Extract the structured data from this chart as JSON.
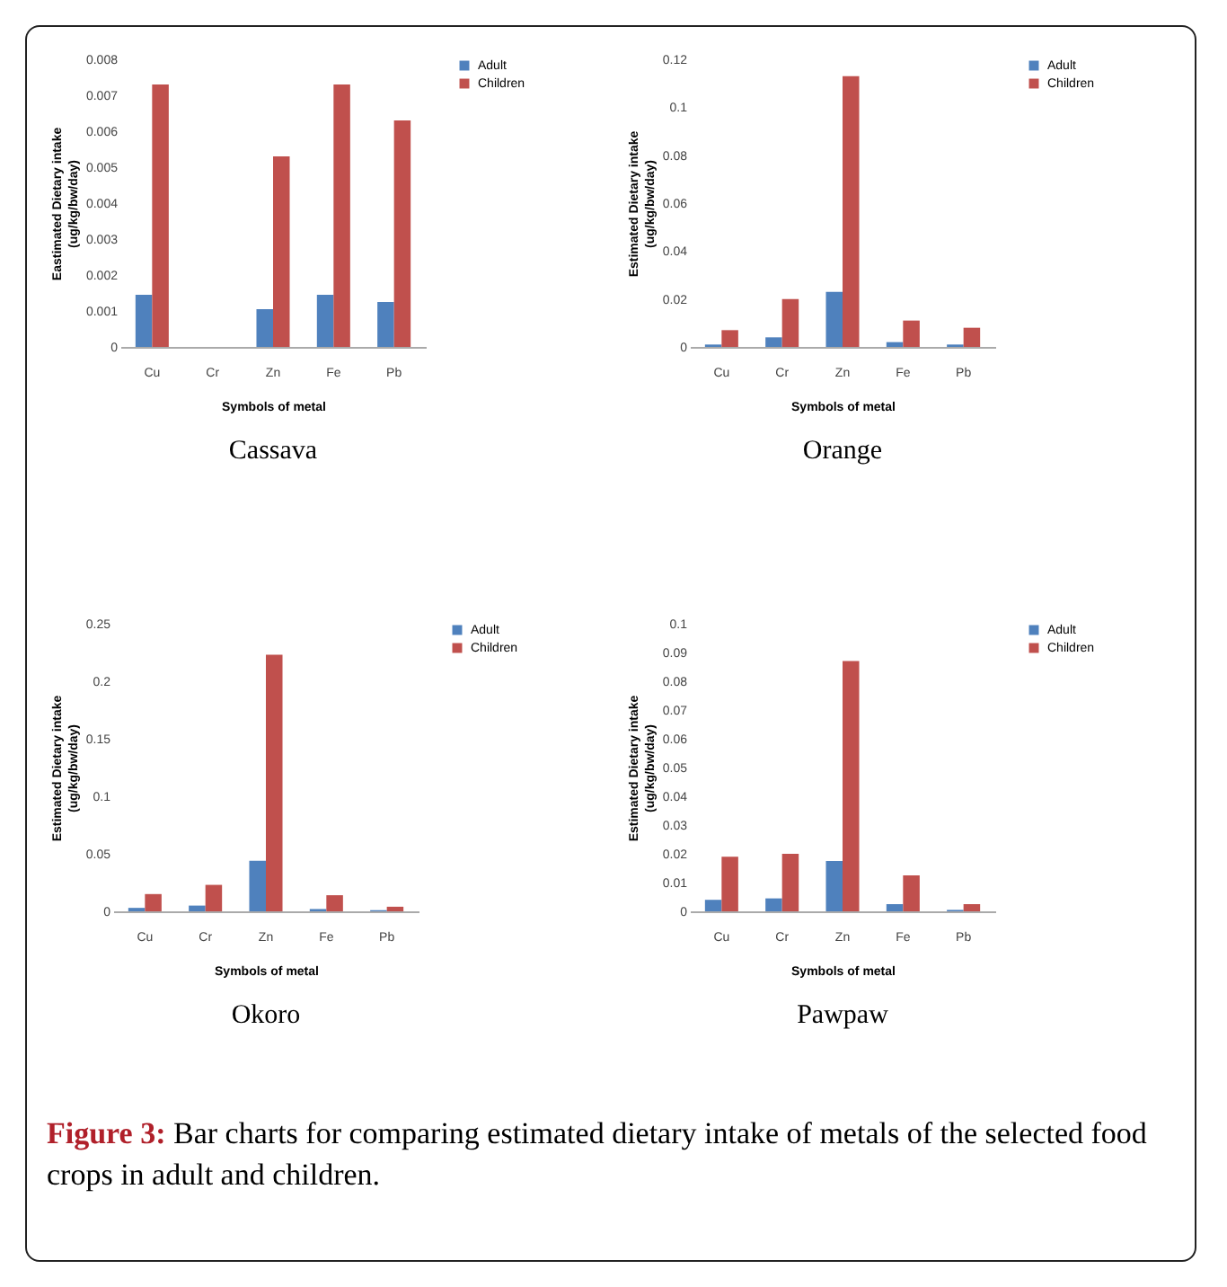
{
  "chart_data": [
    {
      "type": "bar",
      "title": "Cassava",
      "xlabel": "Symbols of metal",
      "ylabel": "Eastimated Dietary intake (ug/kg/bw/day)",
      "categories": [
        "Cu",
        "Cr",
        "Zn",
        "Fe",
        "Pb"
      ],
      "ylim": [
        0,
        0.008
      ],
      "yticks": [
        0,
        0.001,
        0.002,
        0.003,
        0.004,
        0.005,
        0.006,
        0.007,
        0.008
      ],
      "grid": false,
      "legend": "right",
      "series": [
        {
          "name": "Adult",
          "color": "#4f81bd",
          "values": [
            0.00145,
            0,
            0.00105,
            0.00145,
            0.00125
          ]
        },
        {
          "name": "Children",
          "color": "#c0504d",
          "values": [
            0.0073,
            0,
            0.0053,
            0.0073,
            0.0063
          ]
        }
      ]
    },
    {
      "type": "bar",
      "title": "Orange",
      "xlabel": "Symbols of metal",
      "ylabel": "Estimated Dietary intake (ug/kg/bw/day)",
      "categories": [
        "Cu",
        "Cr",
        "Zn",
        "Fe",
        "Pb"
      ],
      "ylim": [
        0,
        0.12
      ],
      "yticks": [
        0,
        0.02,
        0.04,
        0.06,
        0.08,
        0.1,
        0.12
      ],
      "grid": false,
      "legend": "right",
      "series": [
        {
          "name": "Adult",
          "color": "#4f81bd",
          "values": [
            0.001,
            0.004,
            0.023,
            0.002,
            0.001
          ]
        },
        {
          "name": "Children",
          "color": "#c0504d",
          "values": [
            0.007,
            0.02,
            0.113,
            0.011,
            0.008
          ]
        }
      ]
    },
    {
      "type": "bar",
      "title": "Okoro",
      "xlabel": "Symbols of metal",
      "ylabel": "Estimated Dietary intake (ug/kg/bw/day)",
      "categories": [
        "Cu",
        "Cr",
        "Zn",
        "Fe",
        "Pb"
      ],
      "ylim": [
        0,
        0.25
      ],
      "yticks": [
        0,
        0.05,
        0.1,
        0.15,
        0.2,
        0.25
      ],
      "grid": false,
      "legend": "right",
      "series": [
        {
          "name": "Adult",
          "color": "#4f81bd",
          "values": [
            0.003,
            0.005,
            0.044,
            0.002,
            0.001
          ]
        },
        {
          "name": "Children",
          "color": "#c0504d",
          "values": [
            0.015,
            0.023,
            0.223,
            0.014,
            0.004
          ]
        }
      ]
    },
    {
      "type": "bar",
      "title": "Pawpaw",
      "xlabel": "Symbols of metal",
      "ylabel": "Estimated Dietary intake (ug/kg/bw/day)",
      "categories": [
        "Cu",
        "Cr",
        "Zn",
        "Fe",
        "Pb"
      ],
      "ylim": [
        0,
        0.1
      ],
      "yticks": [
        0,
        0.01,
        0.02,
        0.03,
        0.04,
        0.05,
        0.06,
        0.07,
        0.08,
        0.09,
        0.1
      ],
      "grid": false,
      "legend": "right",
      "annotations": [
        "Figure 3: Bar charts for comparing estimated dietary intake of metals of the selected food crops in adult and children."
      ],
      "series": [
        {
          "name": "Adult",
          "color": "#4f81bd",
          "values": [
            0.004,
            0.0045,
            0.0175,
            0.0025,
            0.0005
          ]
        },
        {
          "name": "Children",
          "color": "#c0504d",
          "values": [
            0.019,
            0.02,
            0.087,
            0.0125,
            0.0025
          ]
        }
      ]
    }
  ]
}
